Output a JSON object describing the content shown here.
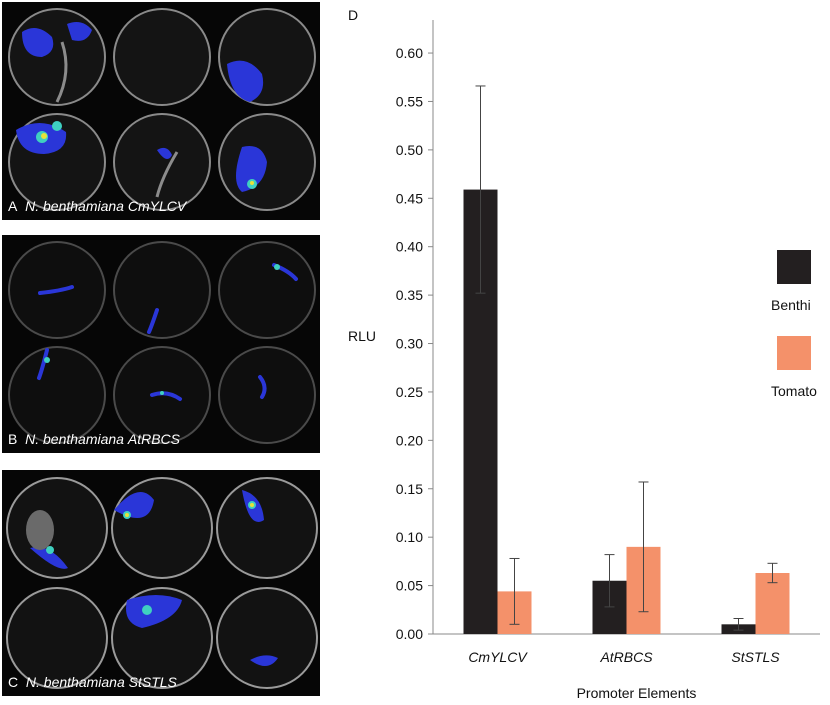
{
  "panels": [
    {
      "letter": "A",
      "species": "N. benthamiana",
      "promoter": "CmYLCV"
    },
    {
      "letter": "B",
      "species": "N. benthamiana",
      "promoter": "AtRBCS"
    },
    {
      "letter": "C",
      "species": "N. benthamiana",
      "promoter": "StSTLS"
    }
  ],
  "chart_data": {
    "type": "bar",
    "panel_letter": "D",
    "categories": [
      "CmYLCV",
      "AtRBCS",
      "StSTLS"
    ],
    "series": [
      {
        "name": "Benthi",
        "color": "#231f20",
        "values": [
          0.459,
          0.055,
          0.01
        ],
        "errors": [
          0.107,
          0.027,
          0.006
        ]
      },
      {
        "name": "Tomato",
        "color": "#f4916a",
        "values": [
          0.044,
          0.09,
          0.063
        ],
        "errors": [
          0.034,
          0.067,
          0.01
        ]
      }
    ],
    "yticks": [
      "0.00",
      "0.05",
      "0.10",
      "0.15",
      "0.20",
      "0.25",
      "0.30",
      "0.35",
      "0.40",
      "0.45",
      "0.50",
      "0.55",
      "0.60"
    ],
    "ylim": [
      0,
      0.63
    ],
    "ylabel": "RLU",
    "xlabel": "Promoter Elements",
    "legend_position": "right"
  }
}
